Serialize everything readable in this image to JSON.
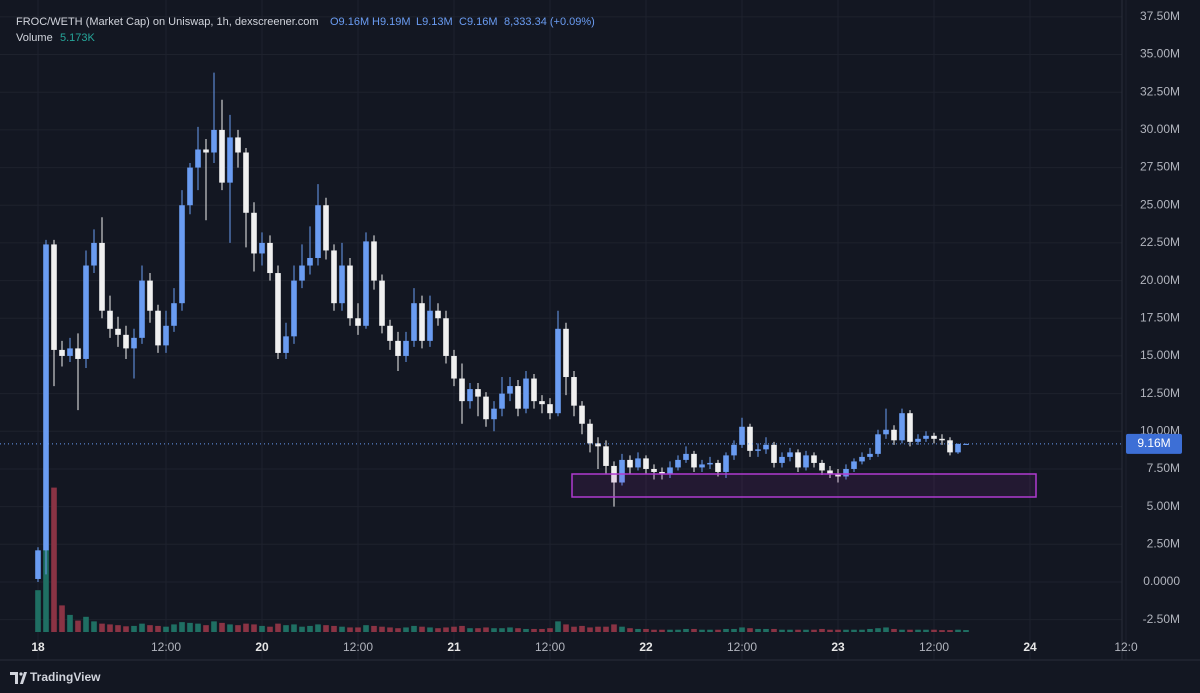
{
  "header": {
    "title": "FROC/WETH (Market Cap) on Uniswap, 1h, dexscreener.com",
    "ohlc": [
      "O9.16M",
      "H9.19M",
      "L9.13M",
      "C9.16M",
      "8,333.34 (+0.09%)"
    ],
    "brand": "TradingView"
  },
  "chart_data": {
    "type": "candlestick",
    "colors": {
      "up": "#6a9cf2",
      "down": "#f0f0f0",
      "volume_up": "#1f6f63",
      "volume_down": "#8a3344"
    },
    "ylim": [
      -3.32,
      38.62
    ],
    "yticks": [
      {
        "value": 37.5,
        "label": "37.50M"
      },
      {
        "value": 35,
        "label": "35.00M"
      },
      {
        "value": 32.5,
        "label": "32.50M"
      },
      {
        "value": 30,
        "label": "30.00M"
      },
      {
        "value": 27.5,
        "label": "27.50M"
      },
      {
        "value": 25,
        "label": "25.00M"
      },
      {
        "value": 22.5,
        "label": "22.50M"
      },
      {
        "value": 20,
        "label": "20.00M"
      },
      {
        "value": 17.5,
        "label": "17.50M"
      },
      {
        "value": 15,
        "label": "15.00M"
      },
      {
        "value": 12.5,
        "label": "12.50M"
      },
      {
        "value": 10,
        "label": "10.00M"
      },
      {
        "value": 7.5,
        "label": "7.50M"
      },
      {
        "value": 5,
        "label": "5.00M"
      },
      {
        "value": 2.5,
        "label": "2.50M"
      },
      {
        "value": 0,
        "label": "0.0000"
      },
      {
        "value": -2.5,
        "label": "-2.50M"
      }
    ],
    "xticks": [
      {
        "value": 0,
        "label": "18"
      },
      {
        "value": 16,
        "label": "12:00"
      },
      {
        "value": 28,
        "label": "20"
      },
      {
        "value": 40,
        "label": "12:00"
      },
      {
        "value": 52,
        "label": "21"
      },
      {
        "value": 64,
        "label": "12:00"
      },
      {
        "value": 76,
        "label": "22"
      },
      {
        "value": 88,
        "label": "12:00"
      },
      {
        "value": 100,
        "label": "23"
      },
      {
        "value": 112,
        "label": "12:00"
      },
      {
        "value": 124,
        "label": "24"
      },
      {
        "value": 136,
        "label": "12:0"
      }
    ],
    "grid": true,
    "last": {
      "value": 9.16,
      "label": "9.16M"
    },
    "open": [
      0.2,
      2.1,
      22.4,
      15.4,
      15.0,
      15.5,
      14.8,
      21.0,
      22.5,
      18.0,
      16.8,
      16.4,
      15.5,
      16.2,
      20.0,
      18.0,
      15.7,
      17.0,
      18.5,
      25.0,
      27.5,
      28.7,
      28.5,
      30.0,
      26.5,
      29.5,
      28.5,
      24.5,
      21.8,
      22.5,
      20.5,
      15.2,
      16.3,
      20.0,
      21.0,
      21.5,
      25.0,
      22.0,
      18.5,
      21.0,
      17.5,
      17.0,
      22.6,
      20.0,
      17.0,
      16.0,
      15.0,
      16.0,
      18.5,
      16.0,
      18.0,
      17.5,
      15.0,
      13.5,
      12.0,
      12.8,
      12.3,
      10.8,
      11.5,
      12.5,
      13.0,
      11.5,
      13.5,
      12.0,
      11.8,
      11.2,
      16.8,
      13.6,
      11.7,
      10.5,
      9.2,
      9.0,
      7.7,
      6.6,
      8.1,
      7.6,
      8.2,
      7.5,
      7.3,
      7.2,
      7.6,
      8.1,
      8.5,
      7.6,
      7.8,
      7.9,
      7.3,
      8.4,
      9.1,
      10.3,
      8.7,
      8.8,
      9.1,
      7.9,
      8.3,
      8.6,
      7.6,
      8.4,
      7.9,
      7.4,
      7.2,
      7.0,
      7.5,
      8.0,
      8.3,
      8.5,
      9.8,
      10.1,
      9.4,
      11.2,
      9.3,
      9.5,
      9.7,
      9.5,
      9.4,
      8.6,
      9.16
    ],
    "high": [
      2.3,
      22.7,
      22.7,
      16,
      16.2,
      16.5,
      22,
      23.4,
      24.2,
      19,
      17.6,
      17,
      16.8,
      21,
      20.5,
      18.4,
      18,
      19.5,
      26,
      27.8,
      30.2,
      29.4,
      33.8,
      32,
      31,
      30,
      28.8,
      25.2,
      23.2,
      23,
      21,
      17.2,
      21,
      22.4,
      23.6,
      26.4,
      25.5,
      22.4,
      22.5,
      21.5,
      18.5,
      23.2,
      23,
      20.4,
      17.4,
      16.6,
      16.6,
      19.5,
      19,
      19,
      18.5,
      18,
      15.4,
      14.5,
      13.2,
      13.2,
      12.6,
      12,
      13.6,
      13.6,
      13.4,
      14,
      13.8,
      12.4,
      12.2,
      18,
      17.2,
      14,
      12,
      10.8,
      9.6,
      9.4,
      8,
      8.5,
      8.4,
      8.6,
      8.4,
      7.8,
      7.6,
      8,
      8.4,
      9,
      8.7,
      8.1,
      8.3,
      8.1,
      8.6,
      9.4,
      10.9,
      10.5,
      9.2,
      9.6,
      9.3,
      8.6,
      8.9,
      8.8,
      8.7,
      8.6,
      8.1,
      7.7,
      7.5,
      7.8,
      8.2,
      8.6,
      8.9,
      10.1,
      11.5,
      10.4,
      11.5,
      11.4,
      9.8,
      10,
      9.9,
      9.8,
      9.6,
      9.19,
      9.19
    ],
    "low": [
      0,
      0.5,
      13,
      14.3,
      14.6,
      11.4,
      14.2,
      20.5,
      17.5,
      16.2,
      15.6,
      14.8,
      13.5,
      15.8,
      17.2,
      15.2,
      15.2,
      16.6,
      18,
      24.4,
      26,
      24,
      27.8,
      26,
      22.5,
      27.5,
      22.2,
      20.6,
      21,
      20,
      14.8,
      14.8,
      15.8,
      19.5,
      20.4,
      21,
      21.4,
      18,
      18,
      17,
      16.4,
      16.8,
      19.4,
      16.5,
      15.4,
      14,
      14.6,
      15.6,
      15.5,
      15.6,
      17,
      14.5,
      13,
      10.5,
      11.5,
      11,
      10.3,
      10,
      11,
      12,
      11,
      11.2,
      11.5,
      11.2,
      10.8,
      11,
      12.4,
      11,
      9.8,
      8.6,
      7.5,
      7.2,
      5.0,
      6.4,
      7.2,
      7.4,
      7.2,
      6.8,
      6.8,
      6.9,
      7.4,
      7.9,
      7.3,
      7.3,
      7.5,
      7,
      6.9,
      8.1,
      8.9,
      8.3,
      8.3,
      8.5,
      7.6,
      7.6,
      8,
      7.3,
      7.4,
      7.6,
      7.1,
      6.9,
      6.6,
      6.8,
      7.3,
      7.8,
      8.1,
      8.3,
      9.5,
      9.1,
      9.2,
      9,
      9.1,
      9.3,
      9.2,
      9.1,
      8.4,
      8.5,
      9.13
    ],
    "close": [
      2.1,
      22.4,
      15.4,
      15.0,
      15.5,
      14.8,
      21.0,
      22.5,
      18.0,
      16.8,
      16.4,
      15.5,
      16.2,
      20.0,
      18.0,
      15.7,
      17.0,
      18.5,
      25.0,
      27.5,
      28.7,
      28.5,
      30.0,
      26.5,
      29.5,
      28.5,
      24.5,
      21.8,
      22.5,
      20.5,
      15.2,
      16.3,
      20.0,
      21.0,
      21.5,
      25.0,
      22.0,
      18.5,
      21.0,
      17.5,
      17.0,
      22.6,
      20.0,
      17.0,
      16.0,
      15.0,
      16.0,
      18.5,
      16.0,
      18.0,
      17.5,
      15.0,
      13.5,
      12.0,
      12.8,
      12.3,
      10.8,
      11.5,
      12.5,
      13.0,
      11.5,
      13.5,
      12.0,
      11.8,
      11.2,
      16.8,
      13.6,
      11.7,
      10.5,
      9.2,
      9.0,
      7.7,
      6.6,
      8.1,
      7.6,
      8.2,
      7.5,
      7.3,
      7.2,
      7.6,
      8.1,
      8.5,
      7.6,
      7.8,
      7.9,
      7.3,
      8.4,
      9.1,
      10.3,
      8.7,
      8.8,
      9.1,
      7.9,
      8.3,
      8.6,
      7.6,
      8.4,
      7.9,
      7.4,
      7.2,
      7.0,
      7.5,
      8.0,
      8.3,
      8.5,
      9.8,
      10.1,
      9.4,
      11.2,
      9.3,
      9.5,
      9.7,
      9.5,
      9.4,
      8.6,
      9.16,
      9.16
    ],
    "volume": {
      "name": "Volume",
      "values": [
        110,
        216,
        380,
        70,
        45,
        30,
        40,
        28,
        22,
        20,
        18,
        15,
        16,
        22,
        18,
        16,
        14,
        20,
        26,
        24,
        22,
        18,
        28,
        24,
        20,
        18,
        22,
        20,
        16,
        14,
        22,
        18,
        20,
        14,
        16,
        20,
        18,
        16,
        14,
        12,
        12,
        18,
        16,
        14,
        12,
        10,
        12,
        16,
        14,
        12,
        10,
        12,
        14,
        16,
        10,
        10,
        12,
        10,
        10,
        12,
        10,
        8,
        8,
        8,
        10,
        28,
        20,
        14,
        16,
        12,
        14,
        14,
        20,
        14,
        10,
        8,
        8,
        6,
        6,
        6,
        6,
        8,
        8,
        6,
        6,
        6,
        8,
        8,
        12,
        10,
        8,
        8,
        8,
        6,
        6,
        6,
        6,
        6,
        8,
        6,
        6,
        6,
        6,
        6,
        8,
        10,
        12,
        8,
        6,
        6,
        6,
        6,
        6,
        5,
        5,
        6,
        5.173
      ],
      "value_labels": [
        null,
        null,
        null,
        null,
        null,
        null,
        null,
        null,
        null,
        null,
        null,
        null,
        null,
        null,
        null,
        null,
        null,
        null,
        null,
        null,
        null,
        null,
        null,
        null,
        null,
        null,
        null,
        null,
        null,
        null,
        null,
        null,
        null,
        null,
        null,
        null,
        null,
        null,
        null,
        null,
        null,
        null,
        null,
        null,
        null,
        null,
        null,
        null,
        null,
        null,
        null,
        null,
        null,
        null,
        null,
        null,
        null,
        null,
        null,
        null,
        null,
        null,
        null,
        null,
        null,
        null,
        null,
        null,
        null,
        null,
        null,
        null,
        null,
        null,
        null,
        null,
        null,
        null,
        null,
        null,
        null,
        null,
        null,
        null,
        null,
        null,
        null,
        null,
        null,
        null,
        null,
        null,
        null,
        null,
        null,
        null,
        null,
        null,
        null,
        null,
        null,
        null,
        null,
        null,
        null,
        null,
        null,
        null,
        null,
        null,
        null,
        null,
        null,
        null,
        null,
        null,
        "5.173K"
      ]
    }
  }
}
